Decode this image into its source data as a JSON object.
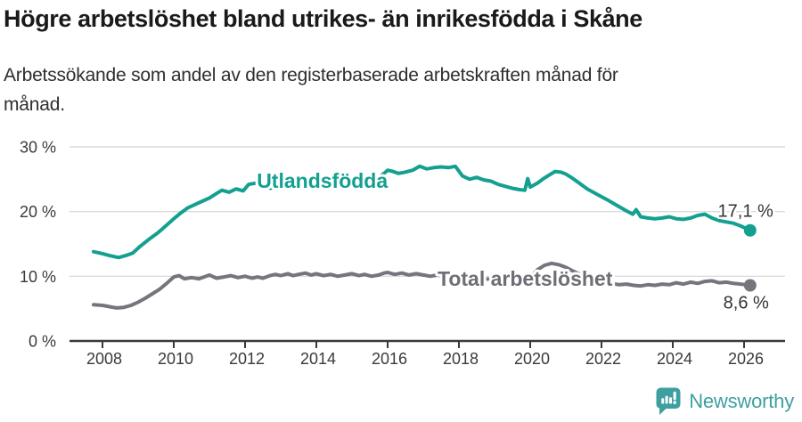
{
  "title": "Högre arbetslöshet bland utrikes- än inrikesfödda i Skåne",
  "subtitle": {
    "line1": "Arbetssökande som andel av den registerbaserade arbetskraften månad för",
    "line2": "månad."
  },
  "footer": {
    "brand": "Newsworthy"
  },
  "colors": {
    "teal_line": "#14a091",
    "gray_line": "#75757d",
    "gray_label": "#6e6e77",
    "grid": "#dcdcdc",
    "axis": "#3a3a3a",
    "tick_text": "#3a3a3a",
    "value_text": "#333333",
    "brand_teal": "#3e9fa1",
    "background": "#ffffff"
  },
  "chart_data": {
    "type": "line",
    "title": "Högre arbetslöshet bland utrikes- än inrikesfödda i Skåne",
    "subtitle": "Arbetssökande som andel av den registerbaserade arbetskraften månad för månad.",
    "xlabel": "",
    "ylabel": "",
    "grid": "horizontal",
    "legend_position": "inline-labels",
    "xlim": [
      2007.1,
      2027.15
    ],
    "ylim": [
      0,
      30
    ],
    "x_ticks": [
      2008,
      2010,
      2012,
      2014,
      2016,
      2018,
      2020,
      2022,
      2024,
      2026
    ],
    "x_tick_labels": [
      "2008",
      "2010",
      "2012",
      "2014",
      "2016",
      "2018",
      "2020",
      "2022",
      "2024",
      "2026"
    ],
    "y_ticks": [
      0,
      10,
      20,
      30
    ],
    "y_tick_labels": [
      "0 %",
      "10 %",
      "20 %",
      "30 %"
    ],
    "series": [
      {
        "id": "total",
        "name": "Total arbetslöshet",
        "color": "#75757d",
        "label_color": "#6e6e77",
        "label_anchor": [
          2017.4,
          8.5
        ],
        "end_label": "8,6 %",
        "end_value": 8.6,
        "end_label_position": "below",
        "points": [
          [
            2007.75,
            5.6
          ],
          [
            2008.0,
            5.5
          ],
          [
            2008.2,
            5.3
          ],
          [
            2008.4,
            5.1
          ],
          [
            2008.6,
            5.2
          ],
          [
            2008.8,
            5.5
          ],
          [
            2009.0,
            6.0
          ],
          [
            2009.2,
            6.6
          ],
          [
            2009.4,
            7.3
          ],
          [
            2009.6,
            8.0
          ],
          [
            2009.8,
            8.9
          ],
          [
            2010.0,
            9.9
          ],
          [
            2010.15,
            10.1
          ],
          [
            2010.3,
            9.6
          ],
          [
            2010.5,
            9.8
          ],
          [
            2010.7,
            9.6
          ],
          [
            2010.85,
            9.9
          ],
          [
            2011.0,
            10.2
          ],
          [
            2011.2,
            9.7
          ],
          [
            2011.4,
            9.9
          ],
          [
            2011.6,
            10.1
          ],
          [
            2011.8,
            9.8
          ],
          [
            2012.0,
            10.0
          ],
          [
            2012.2,
            9.7
          ],
          [
            2012.35,
            9.9
          ],
          [
            2012.5,
            9.7
          ],
          [
            2012.7,
            10.1
          ],
          [
            2012.85,
            10.3
          ],
          [
            2013.0,
            10.1
          ],
          [
            2013.2,
            10.4
          ],
          [
            2013.35,
            10.1
          ],
          [
            2013.5,
            10.3
          ],
          [
            2013.7,
            10.5
          ],
          [
            2013.85,
            10.2
          ],
          [
            2014.0,
            10.4
          ],
          [
            2014.2,
            10.1
          ],
          [
            2014.4,
            10.3
          ],
          [
            2014.6,
            10.0
          ],
          [
            2014.8,
            10.2
          ],
          [
            2015.0,
            10.4
          ],
          [
            2015.2,
            10.1
          ],
          [
            2015.35,
            10.3
          ],
          [
            2015.55,
            10.0
          ],
          [
            2015.75,
            10.2
          ],
          [
            2015.9,
            10.5
          ],
          [
            2016.0,
            10.6
          ],
          [
            2016.2,
            10.3
          ],
          [
            2016.4,
            10.5
          ],
          [
            2016.6,
            10.2
          ],
          [
            2016.8,
            10.4
          ],
          [
            2017.0,
            10.2
          ],
          [
            2017.2,
            10.0
          ],
          [
            2017.4,
            10.2
          ],
          [
            2017.6,
            9.9
          ],
          [
            2017.8,
            10.1
          ],
          [
            2018.0,
            9.9
          ],
          [
            2018.25,
            9.8
          ],
          [
            2018.5,
            9.9
          ],
          [
            2018.75,
            9.6
          ],
          [
            2019.0,
            9.5
          ],
          [
            2019.25,
            9.3
          ],
          [
            2019.5,
            9.4
          ],
          [
            2019.75,
            9.6
          ],
          [
            2020.0,
            9.8
          ],
          [
            2020.2,
            11.0
          ],
          [
            2020.4,
            11.7
          ],
          [
            2020.6,
            12.0
          ],
          [
            2020.8,
            11.8
          ],
          [
            2021.0,
            11.4
          ],
          [
            2021.2,
            10.8
          ],
          [
            2021.4,
            10.3
          ],
          [
            2021.6,
            9.8
          ],
          [
            2021.8,
            9.4
          ],
          [
            2022.0,
            9.1
          ],
          [
            2022.25,
            8.9
          ],
          [
            2022.5,
            8.7
          ],
          [
            2022.7,
            8.8
          ],
          [
            2022.9,
            8.6
          ],
          [
            2023.1,
            8.5
          ],
          [
            2023.3,
            8.7
          ],
          [
            2023.5,
            8.6
          ],
          [
            2023.7,
            8.8
          ],
          [
            2023.9,
            8.7
          ],
          [
            2024.1,
            9.0
          ],
          [
            2024.3,
            8.8
          ],
          [
            2024.5,
            9.1
          ],
          [
            2024.7,
            8.9
          ],
          [
            2024.9,
            9.2
          ],
          [
            2025.1,
            9.3
          ],
          [
            2025.3,
            9.0
          ],
          [
            2025.5,
            9.1
          ],
          [
            2025.7,
            8.9
          ],
          [
            2025.9,
            8.8
          ],
          [
            2026.05,
            8.7
          ],
          [
            2026.17,
            8.6
          ]
        ]
      },
      {
        "id": "utlandsfodda",
        "name": "Utlandsfödda",
        "color": "#14a091",
        "label_color": "#14a091",
        "label_anchor": [
          2012.33,
          23.7
        ],
        "end_label": "17,1 %",
        "end_value": 17.1,
        "end_label_position": "above",
        "points": [
          [
            2007.75,
            13.8
          ],
          [
            2008.0,
            13.5
          ],
          [
            2008.2,
            13.2
          ],
          [
            2008.45,
            12.9
          ],
          [
            2008.65,
            13.2
          ],
          [
            2008.85,
            13.6
          ],
          [
            2009.05,
            14.6
          ],
          [
            2009.3,
            15.7
          ],
          [
            2009.55,
            16.7
          ],
          [
            2009.8,
            17.9
          ],
          [
            2010.0,
            18.9
          ],
          [
            2010.2,
            19.8
          ],
          [
            2010.4,
            20.6
          ],
          [
            2010.6,
            21.1
          ],
          [
            2010.8,
            21.6
          ],
          [
            2011.0,
            22.1
          ],
          [
            2011.2,
            22.8
          ],
          [
            2011.35,
            23.3
          ],
          [
            2011.55,
            23.0
          ],
          [
            2011.75,
            23.5
          ],
          [
            2011.95,
            23.2
          ],
          [
            2012.1,
            24.2
          ],
          [
            2012.3,
            24.4
          ],
          [
            2012.5,
            23.9
          ],
          [
            2012.7,
            23.6
          ],
          [
            2012.9,
            23.8
          ],
          [
            2013.1,
            24.0
          ],
          [
            2013.3,
            24.2
          ],
          [
            2013.5,
            23.9
          ],
          [
            2013.7,
            24.1
          ],
          [
            2013.9,
            24.3
          ],
          [
            2014.1,
            24.4
          ],
          [
            2014.3,
            24.6
          ],
          [
            2014.5,
            24.3
          ],
          [
            2014.7,
            24.5
          ],
          [
            2014.9,
            24.7
          ],
          [
            2015.1,
            24.8
          ],
          [
            2015.3,
            25.0
          ],
          [
            2015.5,
            24.7
          ],
          [
            2015.7,
            25.1
          ],
          [
            2015.9,
            25.9
          ],
          [
            2016.0,
            26.4
          ],
          [
            2016.15,
            26.2
          ],
          [
            2016.3,
            25.9
          ],
          [
            2016.5,
            26.1
          ],
          [
            2016.7,
            26.4
          ],
          [
            2016.9,
            27.0
          ],
          [
            2017.1,
            26.6
          ],
          [
            2017.3,
            26.8
          ],
          [
            2017.5,
            26.9
          ],
          [
            2017.7,
            26.8
          ],
          [
            2017.9,
            27.0
          ],
          [
            2018.1,
            25.5
          ],
          [
            2018.3,
            25.0
          ],
          [
            2018.5,
            25.3
          ],
          [
            2018.7,
            24.9
          ],
          [
            2018.9,
            24.7
          ],
          [
            2019.1,
            24.2
          ],
          [
            2019.3,
            23.9
          ],
          [
            2019.5,
            23.6
          ],
          [
            2019.7,
            23.4
          ],
          [
            2019.85,
            23.3
          ],
          [
            2019.93,
            25.1
          ],
          [
            2020.0,
            23.8
          ],
          [
            2020.2,
            24.4
          ],
          [
            2020.4,
            25.2
          ],
          [
            2020.55,
            25.7
          ],
          [
            2020.7,
            26.2
          ],
          [
            2020.85,
            26.1
          ],
          [
            2021.0,
            25.8
          ],
          [
            2021.2,
            25.1
          ],
          [
            2021.4,
            24.3
          ],
          [
            2021.6,
            23.5
          ],
          [
            2021.8,
            22.9
          ],
          [
            2022.0,
            22.3
          ],
          [
            2022.2,
            21.7
          ],
          [
            2022.45,
            20.9
          ],
          [
            2022.7,
            20.1
          ],
          [
            2022.88,
            19.6
          ],
          [
            2022.97,
            20.3
          ],
          [
            2023.1,
            19.2
          ],
          [
            2023.3,
            19.0
          ],
          [
            2023.5,
            18.9
          ],
          [
            2023.7,
            19.0
          ],
          [
            2023.9,
            19.2
          ],
          [
            2024.1,
            18.9
          ],
          [
            2024.3,
            18.8
          ],
          [
            2024.5,
            19.0
          ],
          [
            2024.7,
            19.4
          ],
          [
            2024.9,
            19.6
          ],
          [
            2025.1,
            19.0
          ],
          [
            2025.3,
            18.6
          ],
          [
            2025.5,
            18.4
          ],
          [
            2025.7,
            18.2
          ],
          [
            2025.9,
            17.8
          ],
          [
            2026.05,
            17.4
          ],
          [
            2026.17,
            17.1
          ]
        ]
      }
    ]
  }
}
